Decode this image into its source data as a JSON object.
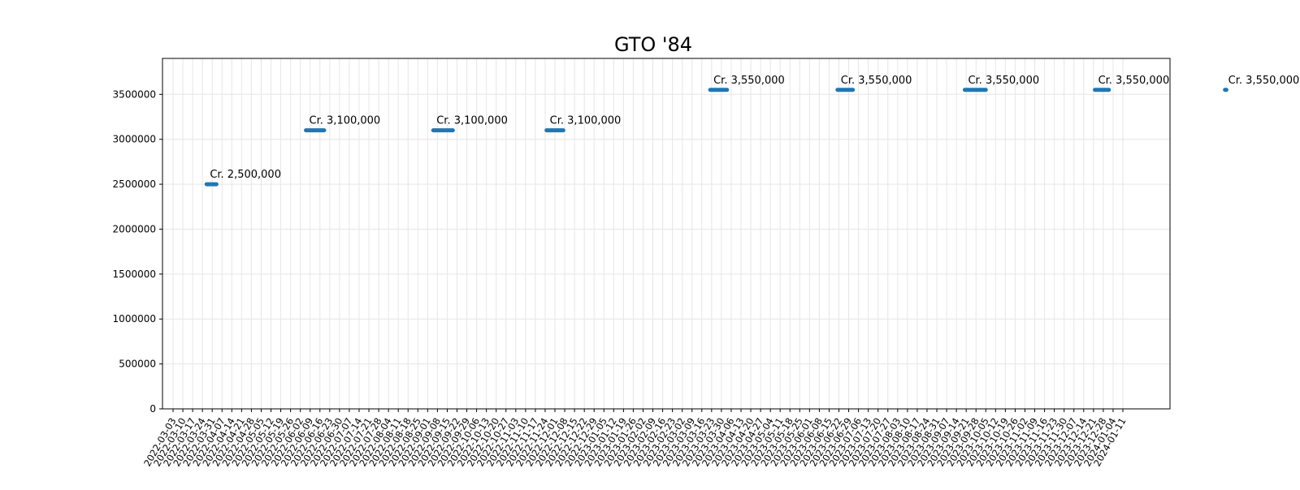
{
  "chart_data": {
    "type": "scatter",
    "title": "GTO '84",
    "xlabel": "",
    "ylabel": "",
    "ylim": [
      0,
      3900000
    ],
    "yticks": [
      0,
      500000,
      1000000,
      1500000,
      2000000,
      2500000,
      3000000,
      3500000
    ],
    "ytick_labels": [
      "0",
      "500000",
      "1000000",
      "1500000",
      "2000000",
      "2500000",
      "3000000",
      "3500000"
    ],
    "grid": true,
    "x_start": "2022-03-03",
    "x_end": "2024-01-11",
    "x_tick_labels": [
      "2022-03-03",
      "2022-03-10",
      "2022-03-17",
      "2022-03-24",
      "2022-03-31",
      "2022-04-07",
      "2022-04-14",
      "2022-04-21",
      "2022-04-28",
      "2022-05-05",
      "2022-05-12",
      "2022-05-19",
      "2022-05-26",
      "2022-06-02",
      "2022-06-09",
      "2022-06-16",
      "2022-06-23",
      "2022-06-30",
      "2022-07-07",
      "2022-07-14",
      "2022-07-21",
      "2022-07-28",
      "2022-08-04",
      "2022-08-11",
      "2022-08-18",
      "2022-08-25",
      "2022-09-01",
      "2022-09-08",
      "2022-09-15",
      "2022-09-22",
      "2022-09-29",
      "2022-10-06",
      "2022-10-13",
      "2022-10-20",
      "2022-10-27",
      "2022-11-03",
      "2022-11-10",
      "2022-11-17",
      "2022-11-24",
      "2022-12-01",
      "2022-12-08",
      "2022-12-15",
      "2022-12-22",
      "2022-12-29",
      "2023-01-05",
      "2023-01-12",
      "2023-01-19",
      "2023-01-26",
      "2023-02-02",
      "2023-02-09",
      "2023-02-16",
      "2023-02-23",
      "2023-03-02",
      "2023-03-09",
      "2023-03-16",
      "2023-03-23",
      "2023-03-30",
      "2023-04-06",
      "2023-04-13",
      "2023-04-20",
      "2023-04-27",
      "2023-05-04",
      "2023-05-11",
      "2023-05-18",
      "2023-05-25",
      "2023-06-01",
      "2023-06-08",
      "2023-06-15",
      "2023-06-22",
      "2023-06-29",
      "2023-07-06",
      "2023-07-13",
      "2023-07-20",
      "2023-07-27",
      "2023-08-03",
      "2023-08-10",
      "2023-08-17",
      "2023-08-24",
      "2023-08-31",
      "2023-09-07",
      "2023-09-14",
      "2023-09-21",
      "2023-09-28",
      "2023-10-05",
      "2023-10-12",
      "2023-10-19",
      "2023-10-26",
      "2023-11-02",
      "2023-11-09",
      "2023-11-16",
      "2023-11-23",
      "2023-11-30",
      "2023-12-07",
      "2023-12-14",
      "2023-12-21",
      "2023-12-28",
      "2024-01-04",
      "2024-01-11"
    ],
    "series": [
      {
        "color": "#1f77b4",
        "segments": [
          {
            "x_from": "2022-03-27",
            "x_to": "2022-04-03",
            "y": 2500000,
            "label": "Cr. 2,500,000"
          },
          {
            "x_from": "2022-06-06",
            "x_to": "2022-06-19",
            "y": 3100000,
            "label": "Cr. 3,100,000"
          },
          {
            "x_from": "2022-09-05",
            "x_to": "2022-09-19",
            "y": 3100000,
            "label": "Cr. 3,100,000"
          },
          {
            "x_from": "2022-11-25",
            "x_to": "2022-12-07",
            "y": 3100000,
            "label": "Cr. 3,100,000"
          },
          {
            "x_from": "2023-03-22",
            "x_to": "2023-04-03",
            "y": 3550000,
            "label": "Cr. 3,550,000"
          },
          {
            "x_from": "2023-06-21",
            "x_to": "2023-07-02",
            "y": 3550000,
            "label": "Cr. 3,550,000"
          },
          {
            "x_from": "2023-09-20",
            "x_to": "2023-10-05",
            "y": 3550000,
            "label": "Cr. 3,550,000"
          },
          {
            "x_from": "2023-12-22",
            "x_to": "2024-01-01",
            "y": 3550000,
            "label": "Cr. 3,550,000"
          },
          {
            "x_from": "2024-03-24",
            "x_to": "2024-03-25",
            "y": 3550000,
            "label": "Cr. 3,550,000"
          }
        ]
      }
    ]
  }
}
